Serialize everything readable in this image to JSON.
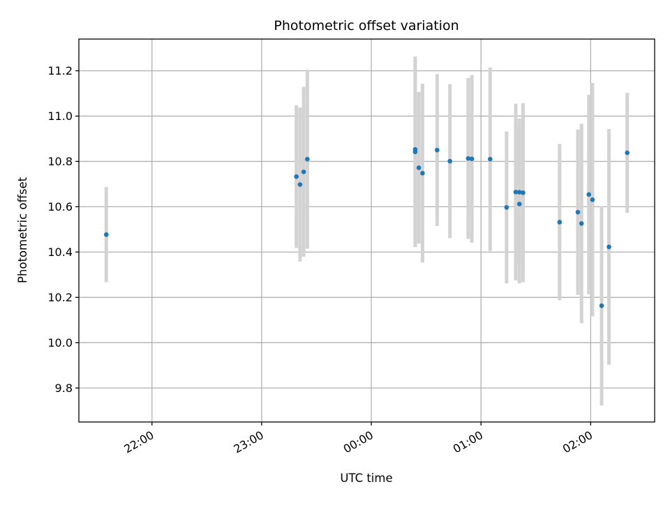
{
  "chart_data": {
    "type": "scatter",
    "title": "Photometric offset variation",
    "xlabel": "UTC time",
    "ylabel": "Photometric offset",
    "xlim": [
      "21:20",
      "02:35"
    ],
    "ylim": [
      9.65,
      11.34
    ],
    "x_ticks": [
      "22:00",
      "23:00",
      "00:00",
      "01:00",
      "02:00"
    ],
    "y_ticks": [
      9.8,
      10.0,
      10.2,
      10.4,
      10.6,
      10.8,
      11.0,
      11.2
    ],
    "y_tick_labels": [
      "9.8",
      "10.0",
      "10.2",
      "10.4",
      "10.6",
      "10.8",
      "11.0",
      "11.2"
    ],
    "grid": true,
    "colors": {
      "point": "#1f77b4",
      "errorbar": "#d3d3d3",
      "grid": "#b0b0b0"
    },
    "points": [
      {
        "x": "21:35",
        "y": 10.477,
        "yerr": 0.21
      },
      {
        "x": "23:19",
        "y": 10.733,
        "yerr": 0.315
      },
      {
        "x": "23:21",
        "y": 10.698,
        "yerr": 0.34
      },
      {
        "x": "23:23",
        "y": 10.754,
        "yerr": 0.375
      },
      {
        "x": "23:25",
        "y": 10.81,
        "yerr": 0.395
      },
      {
        "x": "00:24",
        "y": 10.853,
        "yerr": 0.41
      },
      {
        "x": "00:24",
        "y": 10.842,
        "yerr": 0.42
      },
      {
        "x": "00:26",
        "y": 10.772,
        "yerr": 0.335
      },
      {
        "x": "00:28",
        "y": 10.748,
        "yerr": 0.395
      },
      {
        "x": "00:36",
        "y": 10.85,
        "yerr": 0.335
      },
      {
        "x": "00:43",
        "y": 10.801,
        "yerr": 0.34
      },
      {
        "x": "00:53",
        "y": 10.813,
        "yerr": 0.355
      },
      {
        "x": "00:55",
        "y": 10.811,
        "yerr": 0.37
      },
      {
        "x": "01:05",
        "y": 10.81,
        "yerr": 0.405
      },
      {
        "x": "01:14",
        "y": 10.597,
        "yerr": 0.335
      },
      {
        "x": "01:19",
        "y": 10.665,
        "yerr": 0.39
      },
      {
        "x": "01:21",
        "y": 10.612,
        "yerr": 0.35
      },
      {
        "x": "01:21",
        "y": 10.664,
        "yerr": 0.325
      },
      {
        "x": "01:23",
        "y": 10.662,
        "yerr": 0.395
      },
      {
        "x": "01:43",
        "y": 10.532,
        "yerr": 0.345
      },
      {
        "x": "01:53",
        "y": 10.576,
        "yerr": 0.365
      },
      {
        "x": "01:55",
        "y": 10.526,
        "yerr": 0.44
      },
      {
        "x": "01:59",
        "y": 10.654,
        "yerr": 0.44
      },
      {
        "x": "02:01",
        "y": 10.631,
        "yerr": 0.515
      },
      {
        "x": "02:06",
        "y": 10.163,
        "yerr": 0.44
      },
      {
        "x": "02:10",
        "y": 10.423,
        "yerr": 0.52
      },
      {
        "x": "02:20",
        "y": 10.838,
        "yerr": 0.265
      }
    ]
  }
}
